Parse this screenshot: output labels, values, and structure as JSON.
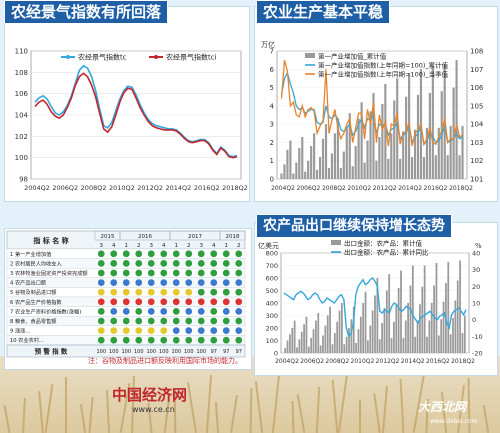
{
  "panel1": {
    "title": "农经景气指数有所回落",
    "legend": [
      "农经景气指数tc",
      "农经景气指数tci"
    ],
    "colors": [
      "#34a7dc",
      "#c0262c"
    ]
  },
  "panel2": {
    "title": "农业生产基本平稳",
    "left_unit": "万亿",
    "legend": [
      "第一产业增加值_累计值",
      "第一产业增加值指数(上年同期=100)_累计值",
      "第一产业增加值指数(上年同期=100)_当季值"
    ],
    "colors": [
      "#9a9a9a",
      "#34a7dc",
      "#e7842a"
    ]
  },
  "panel3": {
    "title": "农产品出口继续保持增长态势",
    "left_unit": "亿美元",
    "right_unit": "%",
    "legend": [
      "出口金额：农产品：累计值",
      "出口金额：农产品：累计同比"
    ],
    "colors": [
      "#9a9a9a",
      "#34a7dc"
    ]
  },
  "table": {
    "header_label": "指  标  名  称",
    "years": [
      "2015",
      "2016",
      "2017",
      "2018"
    ],
    "quarters": [
      "3",
      "4",
      "1",
      "2",
      "3",
      "4",
      "1",
      "2",
      "3",
      "4",
      "1",
      "2"
    ],
    "rows": [
      "1  第一产业增加值",
      "2  农村居民人均收支入",
      "3  农林牧渔业固定资产投资完成额",
      "4  农产品出口额",
      "5  谷物及制品进口额",
      "6  农产品生产价格指数",
      "7  农业生产资料价格指数(涨幅)",
      "8  粮食、食品零售额",
      "9  涨涨...",
      "10  农业农村... "
    ],
    "footer_label": "预  警  指  数",
    "footer_values": [
      "100",
      "100",
      "100",
      "100",
      "100",
      "100",
      "100",
      "100",
      "100",
      "97",
      "97",
      "97"
    ]
  },
  "note": "注：谷物及制品进口额反映利用国际市场的能力。",
  "logo_text": "中国经济网",
  "logo_url": "www.ce.cn",
  "watermark": "大西北网",
  "watermark_url": "www.dxbei.com",
  "chart_data": [
    {
      "type": "line",
      "x_ticks": [
        "2004Q2",
        "2006Q2",
        "2008Q2",
        "2010Q2",
        "2012Q2",
        "2014Q2",
        "2016Q2",
        "2018Q2"
      ],
      "ylim": [
        98,
        110
      ],
      "y_ticks": [
        98,
        100,
        102,
        104,
        106,
        108,
        110
      ],
      "series": [
        {
          "name": "农经景气指数tc",
          "values": [
            105.2,
            105.6,
            105.8,
            105.5,
            104.8,
            104.2,
            104.0,
            104.3,
            104.9,
            105.8,
            107.0,
            108.2,
            108.6,
            108.4,
            107.6,
            106.3,
            104.6,
            103.0,
            102.8,
            103.3,
            104.4,
            105.5,
            106.3,
            106.7,
            106.6,
            105.9,
            105.0,
            104.2,
            103.6,
            103.2,
            103.0,
            102.9,
            102.8,
            102.7,
            102.7,
            102.6,
            102.3,
            101.9,
            101.6,
            101.5,
            101.6,
            101.7,
            101.7,
            101.4,
            100.8,
            100.4,
            101.0,
            100.7,
            100.2,
            100.1,
            100.2
          ]
        },
        {
          "name": "农经景气指数tci",
          "values": [
            104.8,
            105.2,
            105.4,
            105.0,
            104.3,
            103.9,
            103.7,
            104.0,
            104.7,
            105.6,
            106.8,
            107.6,
            107.9,
            107.6,
            106.8,
            105.7,
            104.2,
            102.7,
            102.4,
            102.9,
            104.0,
            105.2,
            106.1,
            106.5,
            106.4,
            105.6,
            104.7,
            104.0,
            103.4,
            103.0,
            102.8,
            102.7,
            102.6,
            102.6,
            102.6,
            102.5,
            102.2,
            101.8,
            101.5,
            101.4,
            101.5,
            101.6,
            101.6,
            101.3,
            100.7,
            100.3,
            100.9,
            100.6,
            100.1,
            100.0,
            100.1
          ]
        }
      ]
    },
    {
      "type": "bar",
      "x_ticks": [
        "2004Q2",
        "2006Q2",
        "2008Q2",
        "2010Q2",
        "2012Q2",
        "2014Q2",
        "2016Q2",
        "2018Q2"
      ],
      "ylim_left": [
        0,
        7
      ],
      "y_ticks_left": [
        0,
        1,
        2,
        3,
        4,
        5,
        6,
        7
      ],
      "ylim_right": [
        101,
        108
      ],
      "y_ticks_right": [
        101,
        102,
        103,
        104,
        105,
        106,
        107,
        108
      ],
      "series": [
        {
          "name": "第一产业增加值_累计值",
          "axis": "left",
          "values": [
            0.3,
            0.8,
            1.6,
            2.1,
            0.3,
            0.9,
            1.7,
            2.3,
            0.4,
            1.0,
            1.8,
            2.5,
            0.5,
            1.2,
            2.2,
            3.0,
            0.6,
            1.4,
            2.5,
            3.3,
            0.6,
            1.5,
            2.8,
            3.6,
            0.7,
            1.8,
            3.3,
            4.2,
            0.9,
            2.1,
            3.7,
            4.7,
            1.0,
            2.3,
            4.1,
            5.2,
            1.1,
            2.5,
            4.3,
            5.5,
            1.1,
            2.6,
            4.5,
            5.8,
            1.2,
            2.7,
            4.6,
            6.0,
            1.2,
            2.8,
            4.7,
            6.2,
            1.3,
            2.8,
            4.8,
            6.3,
            1.3,
            2.9,
            5.0,
            6.5,
            1.3,
            2.9
          ]
        },
        {
          "name": "第一产业增加值指数(上年同期=100)_累计值",
          "axis": "right",
          "values": [
            105.6,
            106.5,
            106.8,
            106.2,
            105.7,
            105.0,
            104.8,
            104.9,
            104.6,
            104.7,
            104.8,
            104.8,
            104.1,
            104.0,
            104.1,
            105.0,
            104.4,
            104.3,
            104.5,
            104.3,
            103.7,
            103.6,
            103.8,
            104.0,
            103.4,
            103.6,
            104.0,
            104.3,
            103.8,
            104.3,
            104.2,
            104.5,
            103.5,
            104.0,
            103.9,
            104.0,
            103.4,
            103.7,
            103.8,
            104.1,
            103.2,
            103.4,
            103.5,
            103.9,
            103.0,
            103.3,
            103.5,
            103.9,
            102.9,
            103.1,
            103.5,
            103.3,
            103.0,
            103.1,
            103.4,
            103.9,
            103.0,
            103.1,
            103.2,
            103.5,
            103.2,
            103.3
          ]
        },
        {
          "name": "第一产业增加值指数(上年同期=100)_当季值",
          "axis": "right",
          "values": [
            105.4,
            107.5,
            106.9,
            105.0,
            105.2,
            104.5,
            104.4,
            105.0,
            104.4,
            104.8,
            104.9,
            104.7,
            103.5,
            103.9,
            104.2,
            107.0,
            103.5,
            104.2,
            104.8,
            103.8,
            103.2,
            103.5,
            104.0,
            104.3,
            103.0,
            103.8,
            104.6,
            104.6,
            103.2,
            104.8,
            104.0,
            105.2,
            103.0,
            104.5,
            103.7,
            104.1,
            102.8,
            104.0,
            103.9,
            104.6,
            102.9,
            103.5,
            103.6,
            104.1,
            102.8,
            103.5,
            103.7,
            104.0,
            102.9,
            103.2,
            103.8,
            103.0,
            102.9,
            103.3,
            103.6,
            104.3,
            103.0,
            103.2,
            103.2,
            104.0,
            103.3,
            103.4
          ]
        }
      ]
    },
    {
      "type": "bar",
      "x_ticks": [
        "2004Q2",
        "2006Q2",
        "2008Q2",
        "2010Q2",
        "2012Q2",
        "2014Q2",
        "2016Q2",
        "2018Q2"
      ],
      "ylim_left": [
        0,
        800
      ],
      "y_ticks_left": [
        0,
        100,
        200,
        300,
        400,
        500,
        600,
        700,
        800
      ],
      "ylim_right": [
        -20,
        40
      ],
      "y_ticks_right": [
        -20,
        -10,
        0,
        10,
        20,
        30,
        40
      ],
      "series": [
        {
          "name": "出口金额：农产品：累计值",
          "axis": "left",
          "values": [
            40,
            100,
            150,
            200,
            260,
            45,
            110,
            170,
            230,
            290,
            50,
            120,
            190,
            260,
            320,
            60,
            140,
            220,
            300,
            370,
            70,
            160,
            250,
            340,
            400,
            70,
            130,
            200,
            270,
            370,
            80,
            190,
            290,
            400,
            490,
            100,
            220,
            340,
            460,
            600,
            110,
            240,
            360,
            500,
            630,
            120,
            250,
            380,
            520,
            660,
            120,
            260,
            400,
            540,
            700,
            130,
            260,
            390,
            530,
            700,
            130,
            260,
            400,
            540,
            720,
            140,
            270,
            410,
            560,
            730,
            150,
            280,
            420,
            580,
            740,
            160,
            300
          ]
        },
        {
          "name": "出口金额：农产品：累计同比",
          "axis": "right",
          "values": [
            16,
            15,
            14,
            13,
            12,
            15,
            16,
            17,
            16,
            14,
            12,
            13,
            15,
            16,
            15,
            12,
            10,
            11,
            13,
            12,
            11,
            10,
            12,
            14,
            15,
            12,
            -5,
            -10,
            -8,
            -2,
            15,
            20,
            22,
            24,
            21,
            22,
            24,
            25,
            23,
            20,
            5,
            4,
            6,
            5,
            4,
            8,
            10,
            9,
            7,
            5,
            6,
            8,
            7,
            6,
            2,
            0,
            -2,
            1,
            2,
            3,
            4,
            5,
            3,
            1,
            0,
            2,
            3,
            4,
            -2,
            -5,
            3,
            5,
            6,
            7,
            5,
            3,
            6
          ]
        }
      ]
    }
  ]
}
